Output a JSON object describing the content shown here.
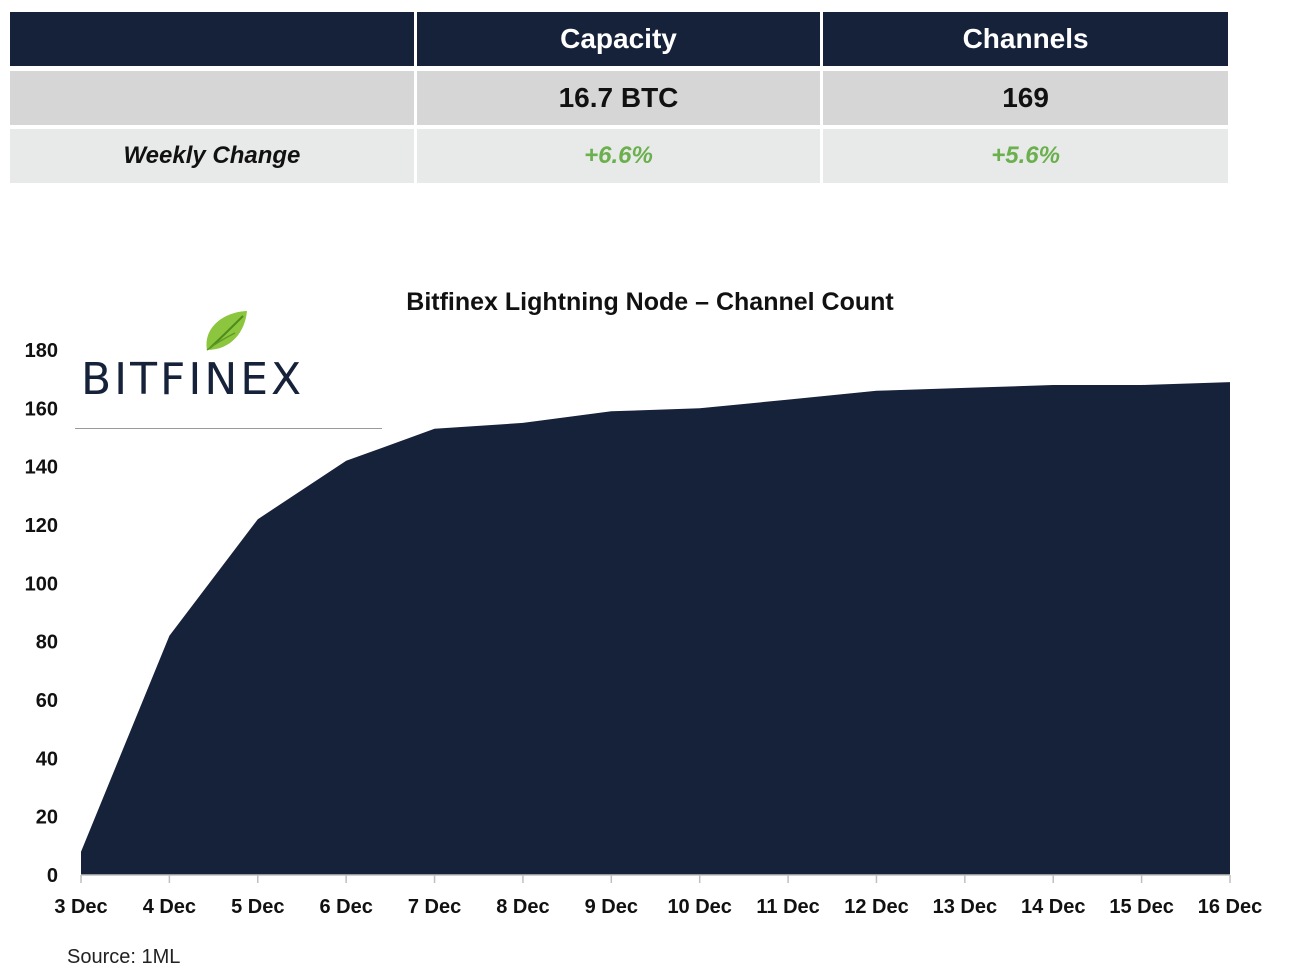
{
  "summary": {
    "headers": [
      "",
      "Capacity",
      "Channels"
    ],
    "values": [
      "",
      "16.7 BTC",
      "169"
    ],
    "weekly_change_label": "Weekly Change",
    "weekly_changes": [
      "+6.6%",
      "+5.6%"
    ]
  },
  "logo": {
    "text": "BITFINEX",
    "icon": "leaf-icon"
  },
  "source": "Source: 1ML",
  "colors": {
    "navy": "#16213a",
    "positive": "#6ab04c",
    "value_row": "#d6d6d7",
    "change_row": "#e8e9e9"
  },
  "chart_data": {
    "type": "area",
    "title": "Bitfinex Lightning Node – Channel Count",
    "xlabel": "",
    "ylabel": "",
    "categories": [
      "3 Dec",
      "4 Dec",
      "5 Dec",
      "6 Dec",
      "7 Dec",
      "8 Dec",
      "9 Dec",
      "10 Dec",
      "11 Dec",
      "12 Dec",
      "13 Dec",
      "14 Dec",
      "15 Dec",
      "16 Dec"
    ],
    "series": [
      {
        "values": [
          8,
          82,
          122,
          142,
          153,
          155,
          159,
          160,
          163,
          166,
          167,
          168,
          168,
          169
        ]
      }
    ],
    "ylim": [
      0,
      180
    ],
    "yticks": [
      0,
      20,
      40,
      60,
      80,
      100,
      120,
      140,
      160,
      180
    ],
    "grid": false,
    "legend": "none",
    "fill_color": "#16213a"
  }
}
